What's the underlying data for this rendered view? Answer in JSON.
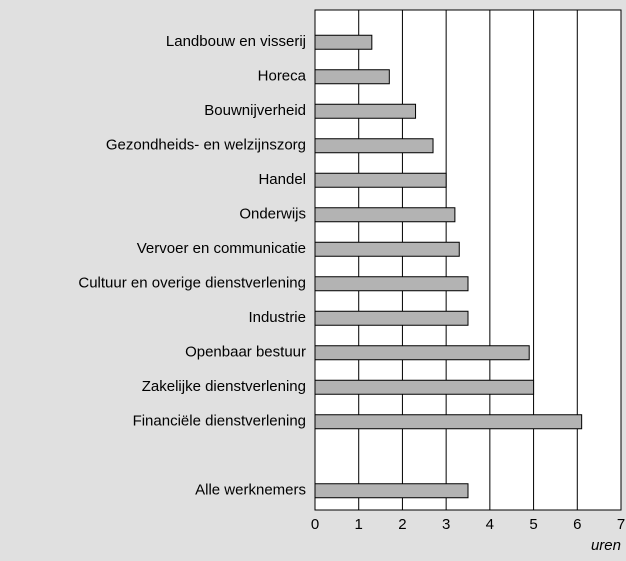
{
  "chart_data": {
    "type": "bar",
    "orientation": "horizontal",
    "categories": [
      "Landbouw en visserij",
      "Horeca",
      "Bouwnijverheid",
      "Gezondheids- en welzijnszorg",
      "Handel",
      "Onderwijs",
      "Vervoer en communicatie",
      "Cultuur en overige dienstverlening",
      "Industrie",
      "Openbaar bestuur",
      "Zakelijke dienstverlening",
      "Financiële dienstverlening",
      null,
      "Alle werknemers"
    ],
    "values": [
      1.3,
      1.7,
      2.3,
      2.7,
      3.0,
      3.2,
      3.3,
      3.5,
      3.5,
      4.9,
      5.0,
      6.1,
      null,
      3.5
    ],
    "color": "#b3b3b3",
    "x_label": "uren",
    "xlim": [
      0,
      7
    ],
    "xticks": [
      0,
      1,
      2,
      3,
      4,
      5,
      6,
      7
    ],
    "grid": true
  }
}
